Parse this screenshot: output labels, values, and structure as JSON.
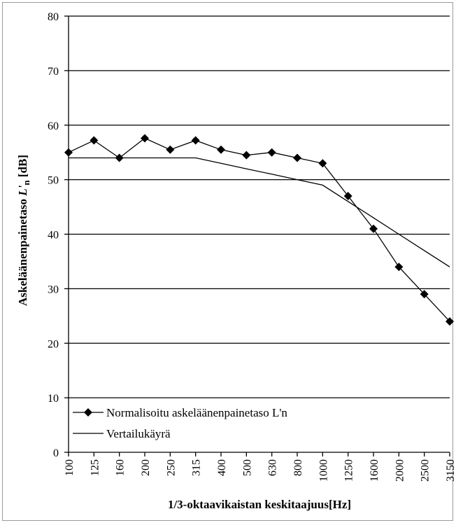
{
  "chart_data": {
    "type": "line",
    "title": "",
    "xlabel": "1/3-oktaavikaistan  keskitaajuus[Hz]",
    "ylabel_main": "Askeläänenpainetaso ",
    "ylabel_symbol": "L'",
    "ylabel_sub": "n",
    "ylabel_unit": " [dB]",
    "categories": [
      "100",
      "125",
      "160",
      "200",
      "250",
      "315",
      "400",
      "500",
      "630",
      "800",
      "1000",
      "1250",
      "1600",
      "2000",
      "2500",
      "3150"
    ],
    "ylim": [
      0,
      80
    ],
    "yticks": [
      0,
      10,
      20,
      30,
      40,
      50,
      60,
      70,
      80
    ],
    "grid": true,
    "legend_position": "bottom-left",
    "series": [
      {
        "name": "Normalisoitu askeläänenpainetaso L'n",
        "marker": "diamond",
        "values": [
          55,
          57.2,
          54,
          57.6,
          55.5,
          57.2,
          55.5,
          54.5,
          55,
          54,
          53,
          47,
          41,
          34,
          29,
          24
        ]
      },
      {
        "name": "Vertailukäyrä",
        "marker": "none",
        "values": [
          54,
          54,
          54,
          54,
          54,
          54,
          53,
          52,
          51,
          50,
          49,
          46,
          43,
          40,
          37,
          34
        ]
      }
    ]
  }
}
